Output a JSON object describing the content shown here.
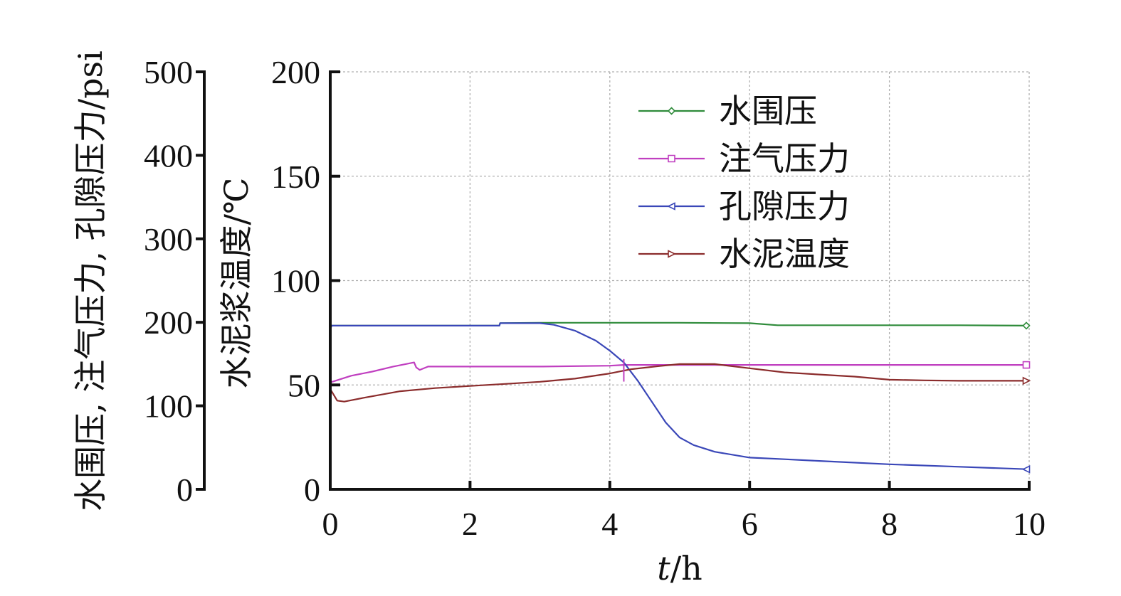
{
  "chart_data": {
    "type": "line",
    "x_axis": {
      "label_italic": "t",
      "label_rest": "/h",
      "range": [
        0,
        10
      ],
      "ticks": [
        0,
        2,
        4,
        6,
        8,
        10
      ],
      "tick_labels": [
        "0",
        "2",
        "4",
        "6",
        "8",
        "10"
      ]
    },
    "y_axis_left": {
      "label": "水围压, 注气压力, 孔隙压力/psi",
      "range": [
        0,
        500
      ],
      "ticks": [
        0,
        100,
        200,
        300,
        400,
        500
      ],
      "tick_labels": [
        "0",
        "100",
        "200",
        "300",
        "400",
        "500"
      ]
    },
    "y_axis_right": {
      "label": "水泥浆温度/℃",
      "range": [
        0,
        200
      ],
      "ticks": [
        0,
        50,
        100,
        150,
        200
      ],
      "tick_labels": [
        "0",
        "50",
        "100",
        "150",
        "200"
      ]
    },
    "grid": true,
    "legend_position": "top-right",
    "series": [
      {
        "name": "水围压",
        "axis": "psi",
        "color": "#2e8b3a",
        "marker": "diamond",
        "points": [
          [
            0,
            194
          ],
          [
            0.02,
            196
          ],
          [
            1,
            196
          ],
          [
            2,
            196
          ],
          [
            2.42,
            196
          ],
          [
            2.43,
            199
          ],
          [
            3,
            199.5
          ],
          [
            4,
            199.5
          ],
          [
            5,
            199.5
          ],
          [
            6,
            199
          ],
          [
            6.4,
            196.5
          ],
          [
            7,
            196.5
          ],
          [
            8,
            196.5
          ],
          [
            9,
            196.5
          ],
          [
            10,
            196
          ]
        ]
      },
      {
        "name": "注气压力",
        "axis": "psi",
        "color": "#c03fc0",
        "marker": "square",
        "points": [
          [
            0,
            128
          ],
          [
            0.3,
            136
          ],
          [
            0.6,
            141
          ],
          [
            0.9,
            147
          ],
          [
            1.2,
            152
          ],
          [
            1.23,
            146
          ],
          [
            1.28,
            143
          ],
          [
            1.4,
            147
          ],
          [
            2,
            147
          ],
          [
            3,
            147
          ],
          [
            4,
            148
          ],
          [
            4.2,
            149
          ],
          [
            5,
            149
          ],
          [
            6,
            149
          ],
          [
            7,
            149
          ],
          [
            8,
            149
          ],
          [
            9,
            149
          ],
          [
            10,
            149
          ]
        ]
      },
      {
        "name": "孔隙压力",
        "axis": "psi",
        "color": "#3a47b8",
        "marker": "triangle-left",
        "points": [
          [
            0,
            192
          ],
          [
            0.02,
            196
          ],
          [
            1,
            196
          ],
          [
            2,
            196
          ],
          [
            2.42,
            196
          ],
          [
            2.43,
            199
          ],
          [
            3,
            199
          ],
          [
            3.2,
            197
          ],
          [
            3.5,
            190
          ],
          [
            3.8,
            178
          ],
          [
            4.0,
            166
          ],
          [
            4.2,
            152
          ],
          [
            4.4,
            130
          ],
          [
            4.6,
            105
          ],
          [
            4.8,
            80
          ],
          [
            5.0,
            62
          ],
          [
            5.2,
            53
          ],
          [
            5.5,
            45
          ],
          [
            6,
            38
          ],
          [
            6.5,
            36
          ],
          [
            7,
            34
          ],
          [
            8,
            30
          ],
          [
            9,
            27
          ],
          [
            10,
            24
          ]
        ]
      },
      {
        "name": "水泥温度",
        "axis": "celsius",
        "color": "#8b2c2c",
        "marker": "triangle-right",
        "points": [
          [
            0,
            48
          ],
          [
            0.1,
            42.5
          ],
          [
            0.2,
            42
          ],
          [
            0.5,
            44
          ],
          [
            1,
            47
          ],
          [
            1.5,
            48.5
          ],
          [
            2,
            49.5
          ],
          [
            2.5,
            50.5
          ],
          [
            3,
            51.5
          ],
          [
            3.5,
            53
          ],
          [
            4,
            55.5
          ],
          [
            4.3,
            57.5
          ],
          [
            4.7,
            59
          ],
          [
            5,
            60
          ],
          [
            5.5,
            60
          ],
          [
            6,
            58
          ],
          [
            6.5,
            56
          ],
          [
            7,
            55
          ],
          [
            7.5,
            54
          ],
          [
            8,
            52.5
          ],
          [
            8.5,
            52.2
          ],
          [
            9,
            52
          ],
          [
            9.5,
            52
          ],
          [
            10,
            52
          ]
        ]
      }
    ]
  }
}
